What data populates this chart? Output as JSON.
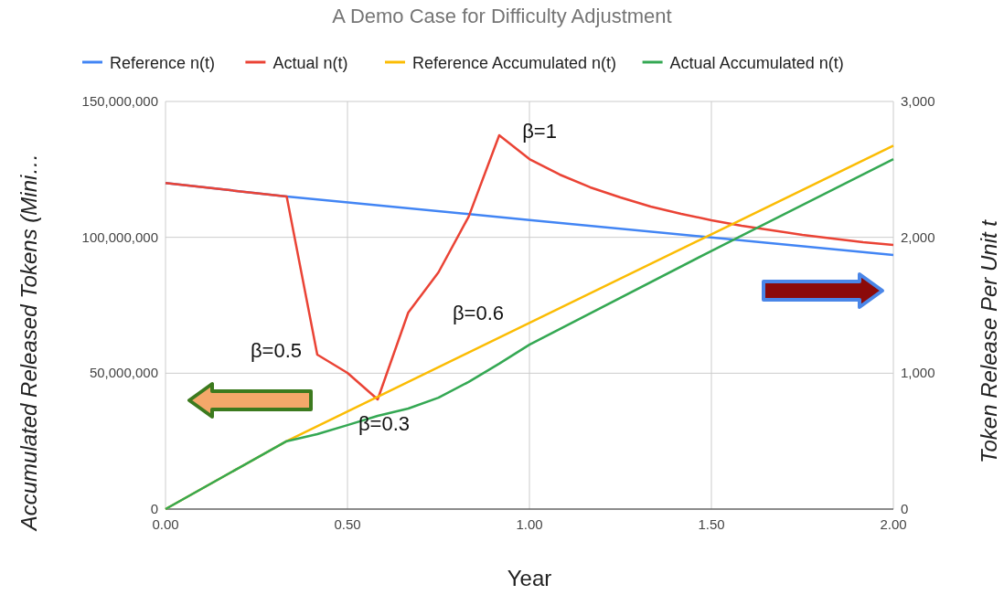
{
  "chart_data": {
    "type": "line",
    "title": "A Demo Case for Difficulty Adjustment",
    "xlabel": "Year",
    "ylabel": "Accumulated Released Tokens (Mini…",
    "y2label": "Token Release Per Unit t",
    "xlim": [
      0,
      2
    ],
    "xticks": [
      {
        "value": 0,
        "label": "0.00"
      },
      {
        "value": 0.5,
        "label": "0.50"
      },
      {
        "value": 1,
        "label": "1.00"
      },
      {
        "value": 1.5,
        "label": "1.50"
      },
      {
        "value": 2,
        "label": "2.00"
      }
    ],
    "ylim": [
      0,
      150000000
    ],
    "yticks": [
      {
        "value": 0,
        "label": "0"
      },
      {
        "value": 50000000,
        "label": "50,000,000"
      },
      {
        "value": 100000000,
        "label": "100,000,000"
      },
      {
        "value": 150000000,
        "label": "150,000,000"
      }
    ],
    "y2lim": [
      0,
      3000
    ],
    "y2ticks": [
      {
        "value": 0,
        "label": "0"
      },
      {
        "value": 1000,
        "label": "1,000"
      },
      {
        "value": 2000,
        "label": "2,000"
      },
      {
        "value": 3000,
        "label": "3,000"
      }
    ],
    "grid": true,
    "legend": "top",
    "marker": "none",
    "line_style": "solid",
    "series": [
      {
        "name": "Reference n(t)",
        "color": "#4285f4",
        "axis": "y2",
        "x": [
          0,
          0.333,
          1,
          2
        ],
        "values": [
          2400,
          2300,
          2128,
          1870
        ]
      },
      {
        "name": "Actual n(t)",
        "color": "#ea4335",
        "axis": "y2",
        "x": [
          0,
          0.333,
          0.417,
          0.5,
          0.583,
          0.667,
          0.75,
          0.833,
          0.917,
          1,
          1.083,
          1.167,
          1.25,
          1.333,
          1.417,
          1.5,
          1.583,
          1.667,
          1.75,
          1.833,
          1.917,
          2
        ],
        "values": [
          2400,
          2300,
          1137,
          1002,
          807,
          1446,
          1742,
          2152,
          2751,
          2576,
          2462,
          2368,
          2294,
          2226,
          2173,
          2126,
          2085,
          2052,
          2018,
          1991,
          1964,
          1944
        ]
      },
      {
        "name": "Reference Accumulated n(t)",
        "color": "#fbbc04",
        "x": [
          0,
          0.333,
          2
        ],
        "values": [
          0,
          25000000,
          133700000
        ]
      },
      {
        "name": "Actual Accumulated n(t)",
        "color": "#34a853",
        "x": [
          0,
          0.333,
          0.417,
          0.5,
          0.583,
          0.667,
          0.75,
          0.833,
          0.917,
          1,
          1.5,
          2
        ],
        "values": [
          0,
          25000000,
          27600000,
          30900000,
          34300000,
          37000000,
          41000000,
          46800000,
          53500000,
          60500000,
          95000000,
          128800000
        ]
      }
    ],
    "annotations": [
      "β=1",
      "β=0.5",
      "β=0.6",
      "β=0.3"
    ]
  }
}
